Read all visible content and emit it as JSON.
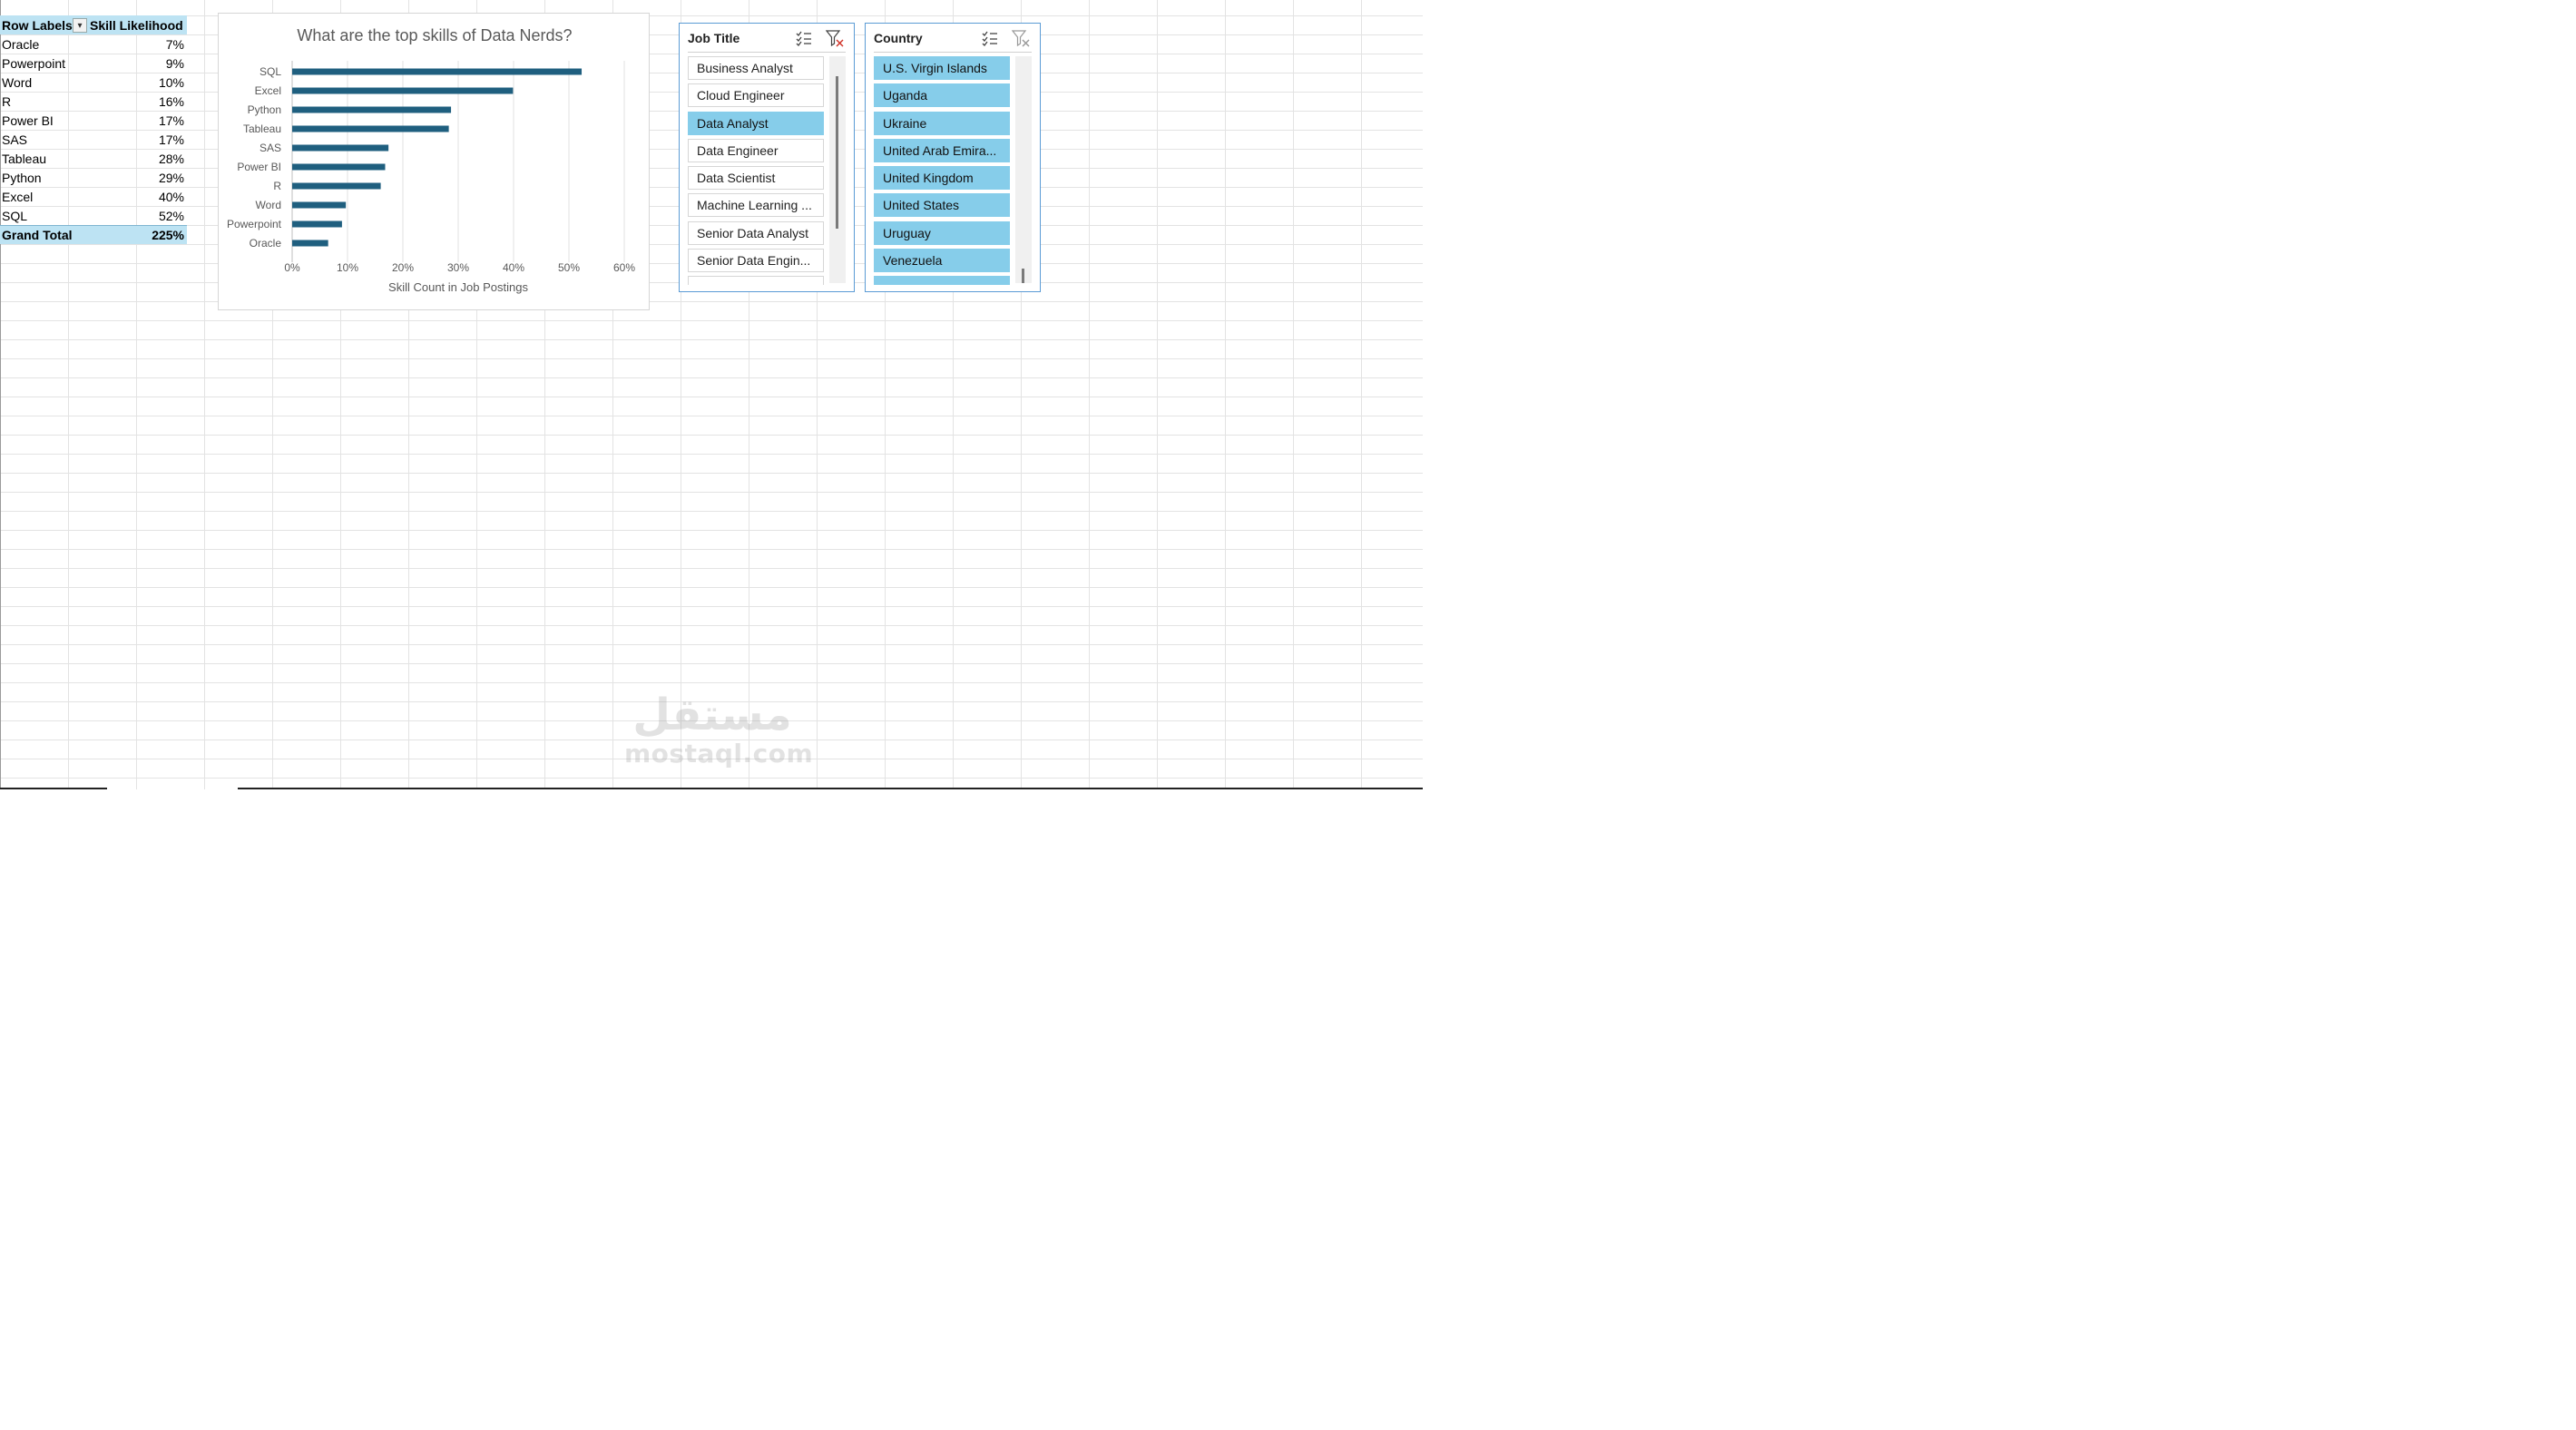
{
  "pivot": {
    "header": {
      "row_labels": "Row Labels",
      "value_header": "Skill Likelihood"
    },
    "rows": [
      {
        "label": "Oracle",
        "value": "7%"
      },
      {
        "label": "Powerpoint",
        "value": "9%"
      },
      {
        "label": "Word",
        "value": "10%"
      },
      {
        "label": "R",
        "value": "16%"
      },
      {
        "label": "Power BI",
        "value": "17%"
      },
      {
        "label": "SAS",
        "value": "17%"
      },
      {
        "label": "Tableau",
        "value": "28%"
      },
      {
        "label": "Python",
        "value": "29%"
      },
      {
        "label": "Excel",
        "value": "40%"
      },
      {
        "label": "SQL",
        "value": "52%"
      }
    ],
    "total": {
      "label": "Grand Total",
      "value": "225%"
    }
  },
  "chart_data": {
    "type": "bar",
    "orientation": "horizontal",
    "title": "What are the top skills of Data Nerds?",
    "xlabel": "Skill Count in Job Postings",
    "ylabel": "",
    "categories": [
      "SQL",
      "Excel",
      "Python",
      "Tableau",
      "SAS",
      "Power BI",
      "R",
      "Word",
      "Powerpoint",
      "Oracle"
    ],
    "values": [
      0.523,
      0.399,
      0.287,
      0.283,
      0.174,
      0.168,
      0.16,
      0.097,
      0.09,
      0.065
    ],
    "xlim": [
      0,
      0.6
    ],
    "x_ticks": [
      "0%",
      "10%",
      "20%",
      "30%",
      "40%",
      "50%",
      "60%"
    ],
    "grid": "vertical",
    "bar_color": "#1f5f7f"
  },
  "slicers": {
    "job_title": {
      "title": "Job Title",
      "items": [
        {
          "label": "Business Analyst",
          "selected": false
        },
        {
          "label": "Cloud Engineer",
          "selected": false
        },
        {
          "label": "Data Analyst",
          "selected": true
        },
        {
          "label": "Data Engineer",
          "selected": false
        },
        {
          "label": "Data Scientist",
          "selected": false
        },
        {
          "label": "Machine Learning ...",
          "selected": false
        },
        {
          "label": "Senior Data Analyst",
          "selected": false
        },
        {
          "label": "Senior Data Engin...",
          "selected": false
        },
        {
          "label": "",
          "selected": false
        }
      ],
      "icons": [
        "multi-select-icon",
        "clear-filter-icon"
      ],
      "scroll_position": 0.1
    },
    "country": {
      "title": "Country",
      "items": [
        {
          "label": "U.S. Virgin Islands",
          "selected": true
        },
        {
          "label": "Uganda",
          "selected": true
        },
        {
          "label": "Ukraine",
          "selected": true
        },
        {
          "label": "United Arab Emira...",
          "selected": true
        },
        {
          "label": "United Kingdom",
          "selected": true
        },
        {
          "label": "United States",
          "selected": true
        },
        {
          "label": "Uruguay",
          "selected": true
        },
        {
          "label": "Venezuela",
          "selected": true
        },
        {
          "label": "",
          "selected": true
        }
      ],
      "icons": [
        "multi-select-icon",
        "clear-filter-icon"
      ],
      "scroll_position": 0.95
    }
  },
  "colors": {
    "selected": "#86cdea",
    "pivot_header": "#bde3f3",
    "slicer_border": "#5b9bd5"
  },
  "watermark": {
    "arabic": "مستقل",
    "latin": "mostaql.com"
  }
}
